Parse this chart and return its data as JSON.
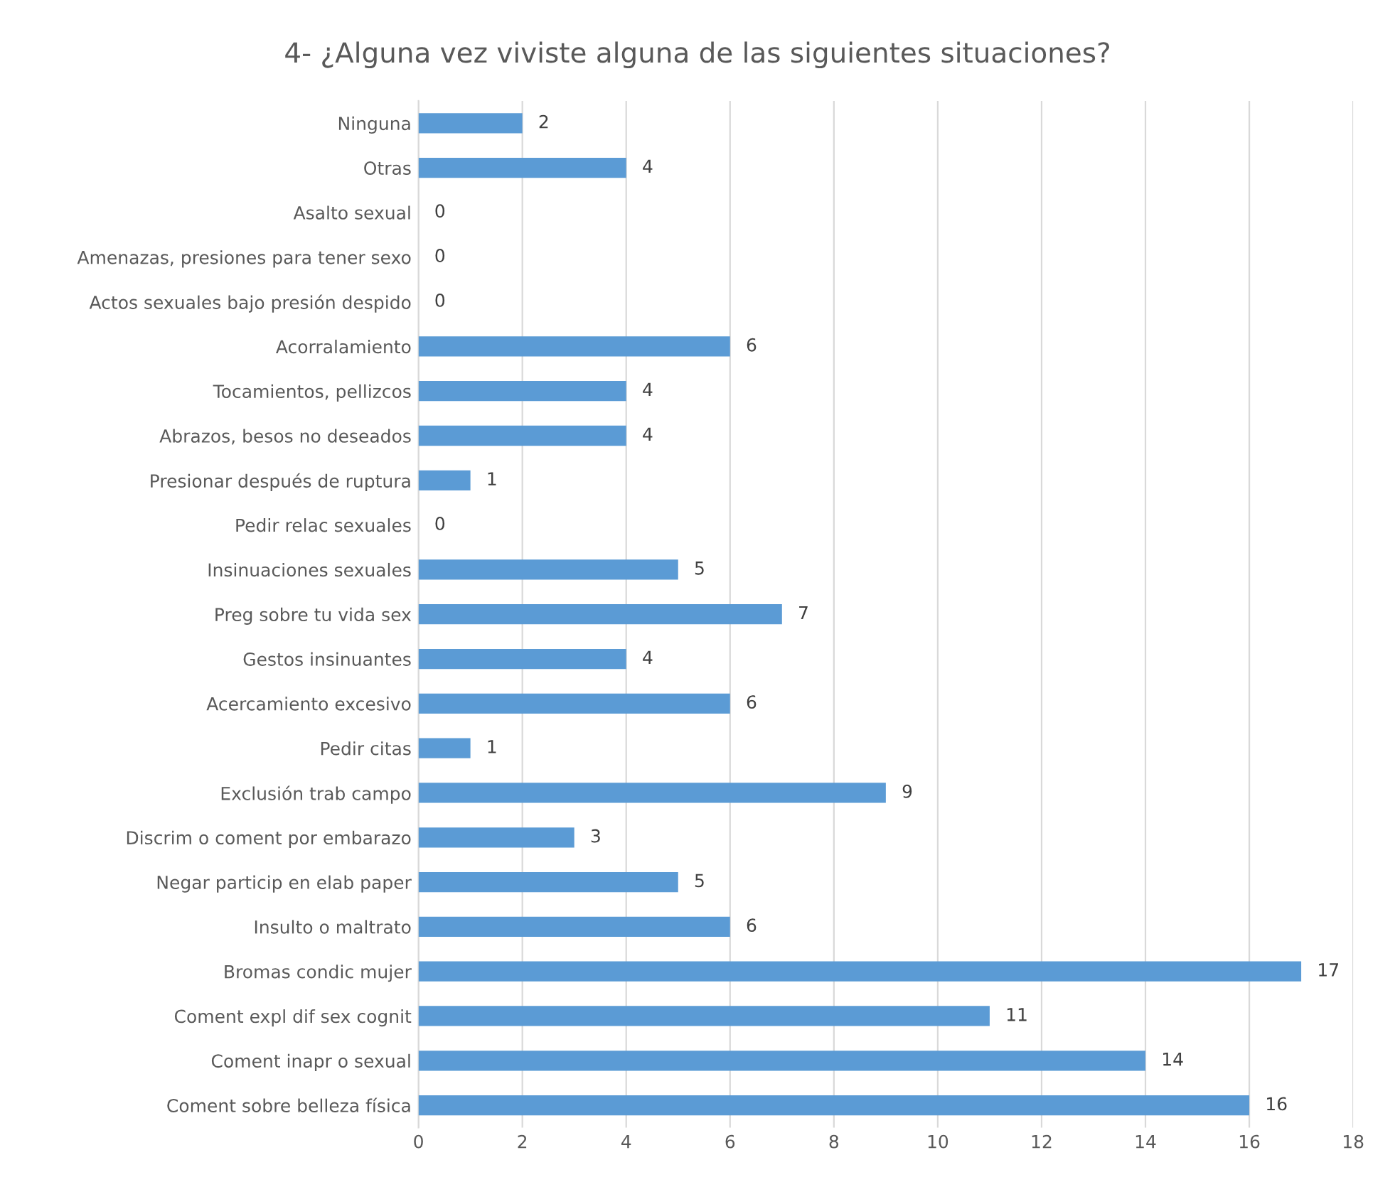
{
  "chart_data": {
    "type": "bar",
    "orientation": "horizontal",
    "title": "4- ¿Alguna vez viviste alguna de las siguientes situaciones?",
    "categories": [
      "Ninguna",
      "Otras",
      "Asalto sexual",
      "Amenazas, presiones para tener sexo",
      "Actos sexuales bajo presión despido",
      "Acorralamiento",
      "Tocamientos, pellizcos",
      "Abrazos, besos no deseados",
      "Presionar después de ruptura",
      "Pedir relac sexuales",
      "Insinuaciones sexuales",
      "Preg sobre tu vida sex",
      "Gestos insinuantes",
      "Acercamiento excesivo",
      "Pedir citas",
      "Exclusión trab campo",
      "Discrim o coment por embarazo",
      "Negar particip en elab paper",
      "Insulto o maltrato",
      "Bromas condic mujer",
      "Coment expl dif sex cognit",
      "Coment inapr o sexual",
      "Coment sobre belleza física"
    ],
    "values": [
      2,
      4,
      0,
      0,
      0,
      6,
      4,
      4,
      1,
      0,
      5,
      7,
      4,
      6,
      1,
      9,
      3,
      5,
      6,
      17,
      11,
      14,
      16
    ],
    "color": "#5b9bd5",
    "xlim": [
      0,
      18
    ],
    "xticks": [
      0,
      2,
      4,
      6,
      8,
      10,
      12,
      14,
      16,
      18
    ],
    "grid": "x",
    "data_labels": true
  }
}
